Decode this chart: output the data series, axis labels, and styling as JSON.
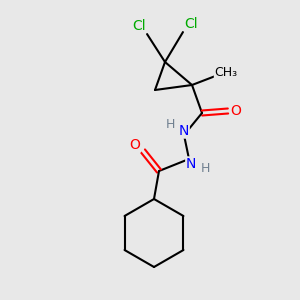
{
  "background_color": "#e8e8e8",
  "bond_color": "#000000",
  "bond_width": 1.5,
  "atom_colors": {
    "C": "#000000",
    "H": "#708090",
    "N": "#0000ff",
    "O": "#ff0000",
    "Cl": "#00aa00"
  },
  "font_size": 9,
  "fig_size": [
    3.0,
    3.0
  ],
  "dpi": 100
}
